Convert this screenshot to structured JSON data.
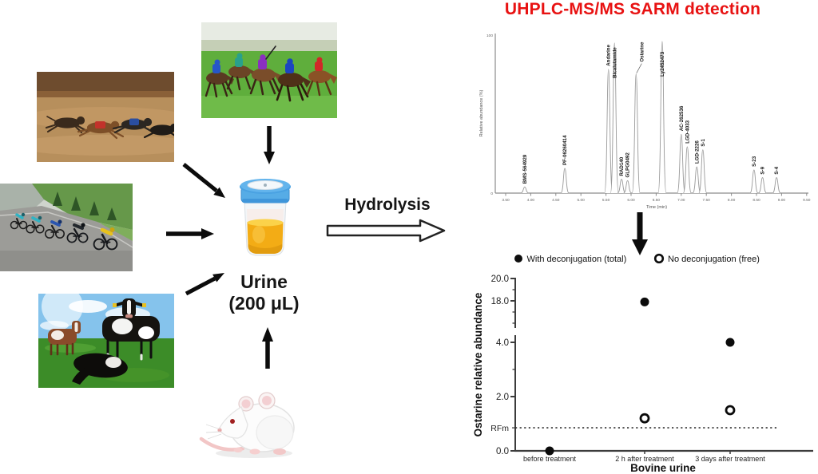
{
  "title": "UHPLC-MS/MS SARM detection",
  "colors": {
    "title_red": "#e81212",
    "urine_amber": "#f3ac15",
    "lid_blue": "#56ace6"
  },
  "workflow": {
    "sample_label_line1": "Urine",
    "sample_label_line2": "(200 μL)",
    "process_arrow_label": "Hydrolysis",
    "sources": [
      "greyhound racing",
      "horse racing",
      "cycling",
      "cattle",
      "laboratory mouse"
    ]
  },
  "chart_data": [
    {
      "id": "chromatogram",
      "type": "line",
      "title": "",
      "xlabel": "Time (min)",
      "ylabel": "Relative abundance (%)",
      "x_range": [
        3.5,
        9.5
      ],
      "ylim": [
        0,
        100
      ],
      "grid": false,
      "x_ticks": [
        "3.50",
        "4.00",
        "4.50",
        "5.00",
        "5.50",
        "6.00",
        "6.50",
        "7.00",
        "7.50",
        "8.00",
        "8.50",
        "9.00",
        "9.50"
      ],
      "y_ticks": [
        "100",
        "0"
      ],
      "peaks": [
        {
          "label": "BMS-564929",
          "rt": 3.88,
          "height": 4
        },
        {
          "label": "PF-06260414",
          "rt": 4.68,
          "height": 16
        },
        {
          "label": "Andarine",
          "rt": 5.55,
          "height": 80
        },
        {
          "label": "Bicalutamide",
          "rt": 5.67,
          "height": 97
        },
        {
          "label": "RAD140",
          "rt": 5.81,
          "height": 9
        },
        {
          "label": "GLPG0492",
          "rt": 5.93,
          "height": 8
        },
        {
          "label": "Ostarine",
          "rt": 6.1,
          "height": 77
        },
        {
          "label": "Ly2452473",
          "rt": 6.62,
          "height": 98
        },
        {
          "label": "AC-262536",
          "rt": 7.0,
          "height": 38
        },
        {
          "label": "LGD-4033",
          "rt": 7.12,
          "height": 30
        },
        {
          "label": "LGD-2226",
          "rt": 7.31,
          "height": 17
        },
        {
          "label": "S-1",
          "rt": 7.43,
          "height": 28
        },
        {
          "label": "S-23",
          "rt": 8.45,
          "height": 15
        },
        {
          "label": "S-9",
          "rt": 8.62,
          "height": 10
        },
        {
          "label": "S-4",
          "rt": 8.9,
          "height": 10
        }
      ]
    },
    {
      "id": "ostarine-scatter",
      "type": "scatter",
      "xlabel": "Bovine urine",
      "ylabel": "Ostarine relative abundance",
      "categories": [
        "before treatment",
        "2 h after treatment",
        "3 days after treatment"
      ],
      "series": [
        {
          "name": "With deconjugation (total)",
          "marker": "filled",
          "values": [
            0.0,
            17.9,
            4.0
          ]
        },
        {
          "name": "No deconjugation (free)",
          "marker": "open",
          "values": [
            null,
            1.2,
            1.5
          ]
        }
      ],
      "axis_break": true,
      "y_ticks_upper": [
        "20.0",
        "18.0"
      ],
      "y_ticks_lower": [
        "4.0",
        "2.0",
        "0.0"
      ],
      "threshold": {
        "label": "RFm",
        "value": 0.85,
        "style": "dotted"
      },
      "legend_position": "top"
    }
  ]
}
